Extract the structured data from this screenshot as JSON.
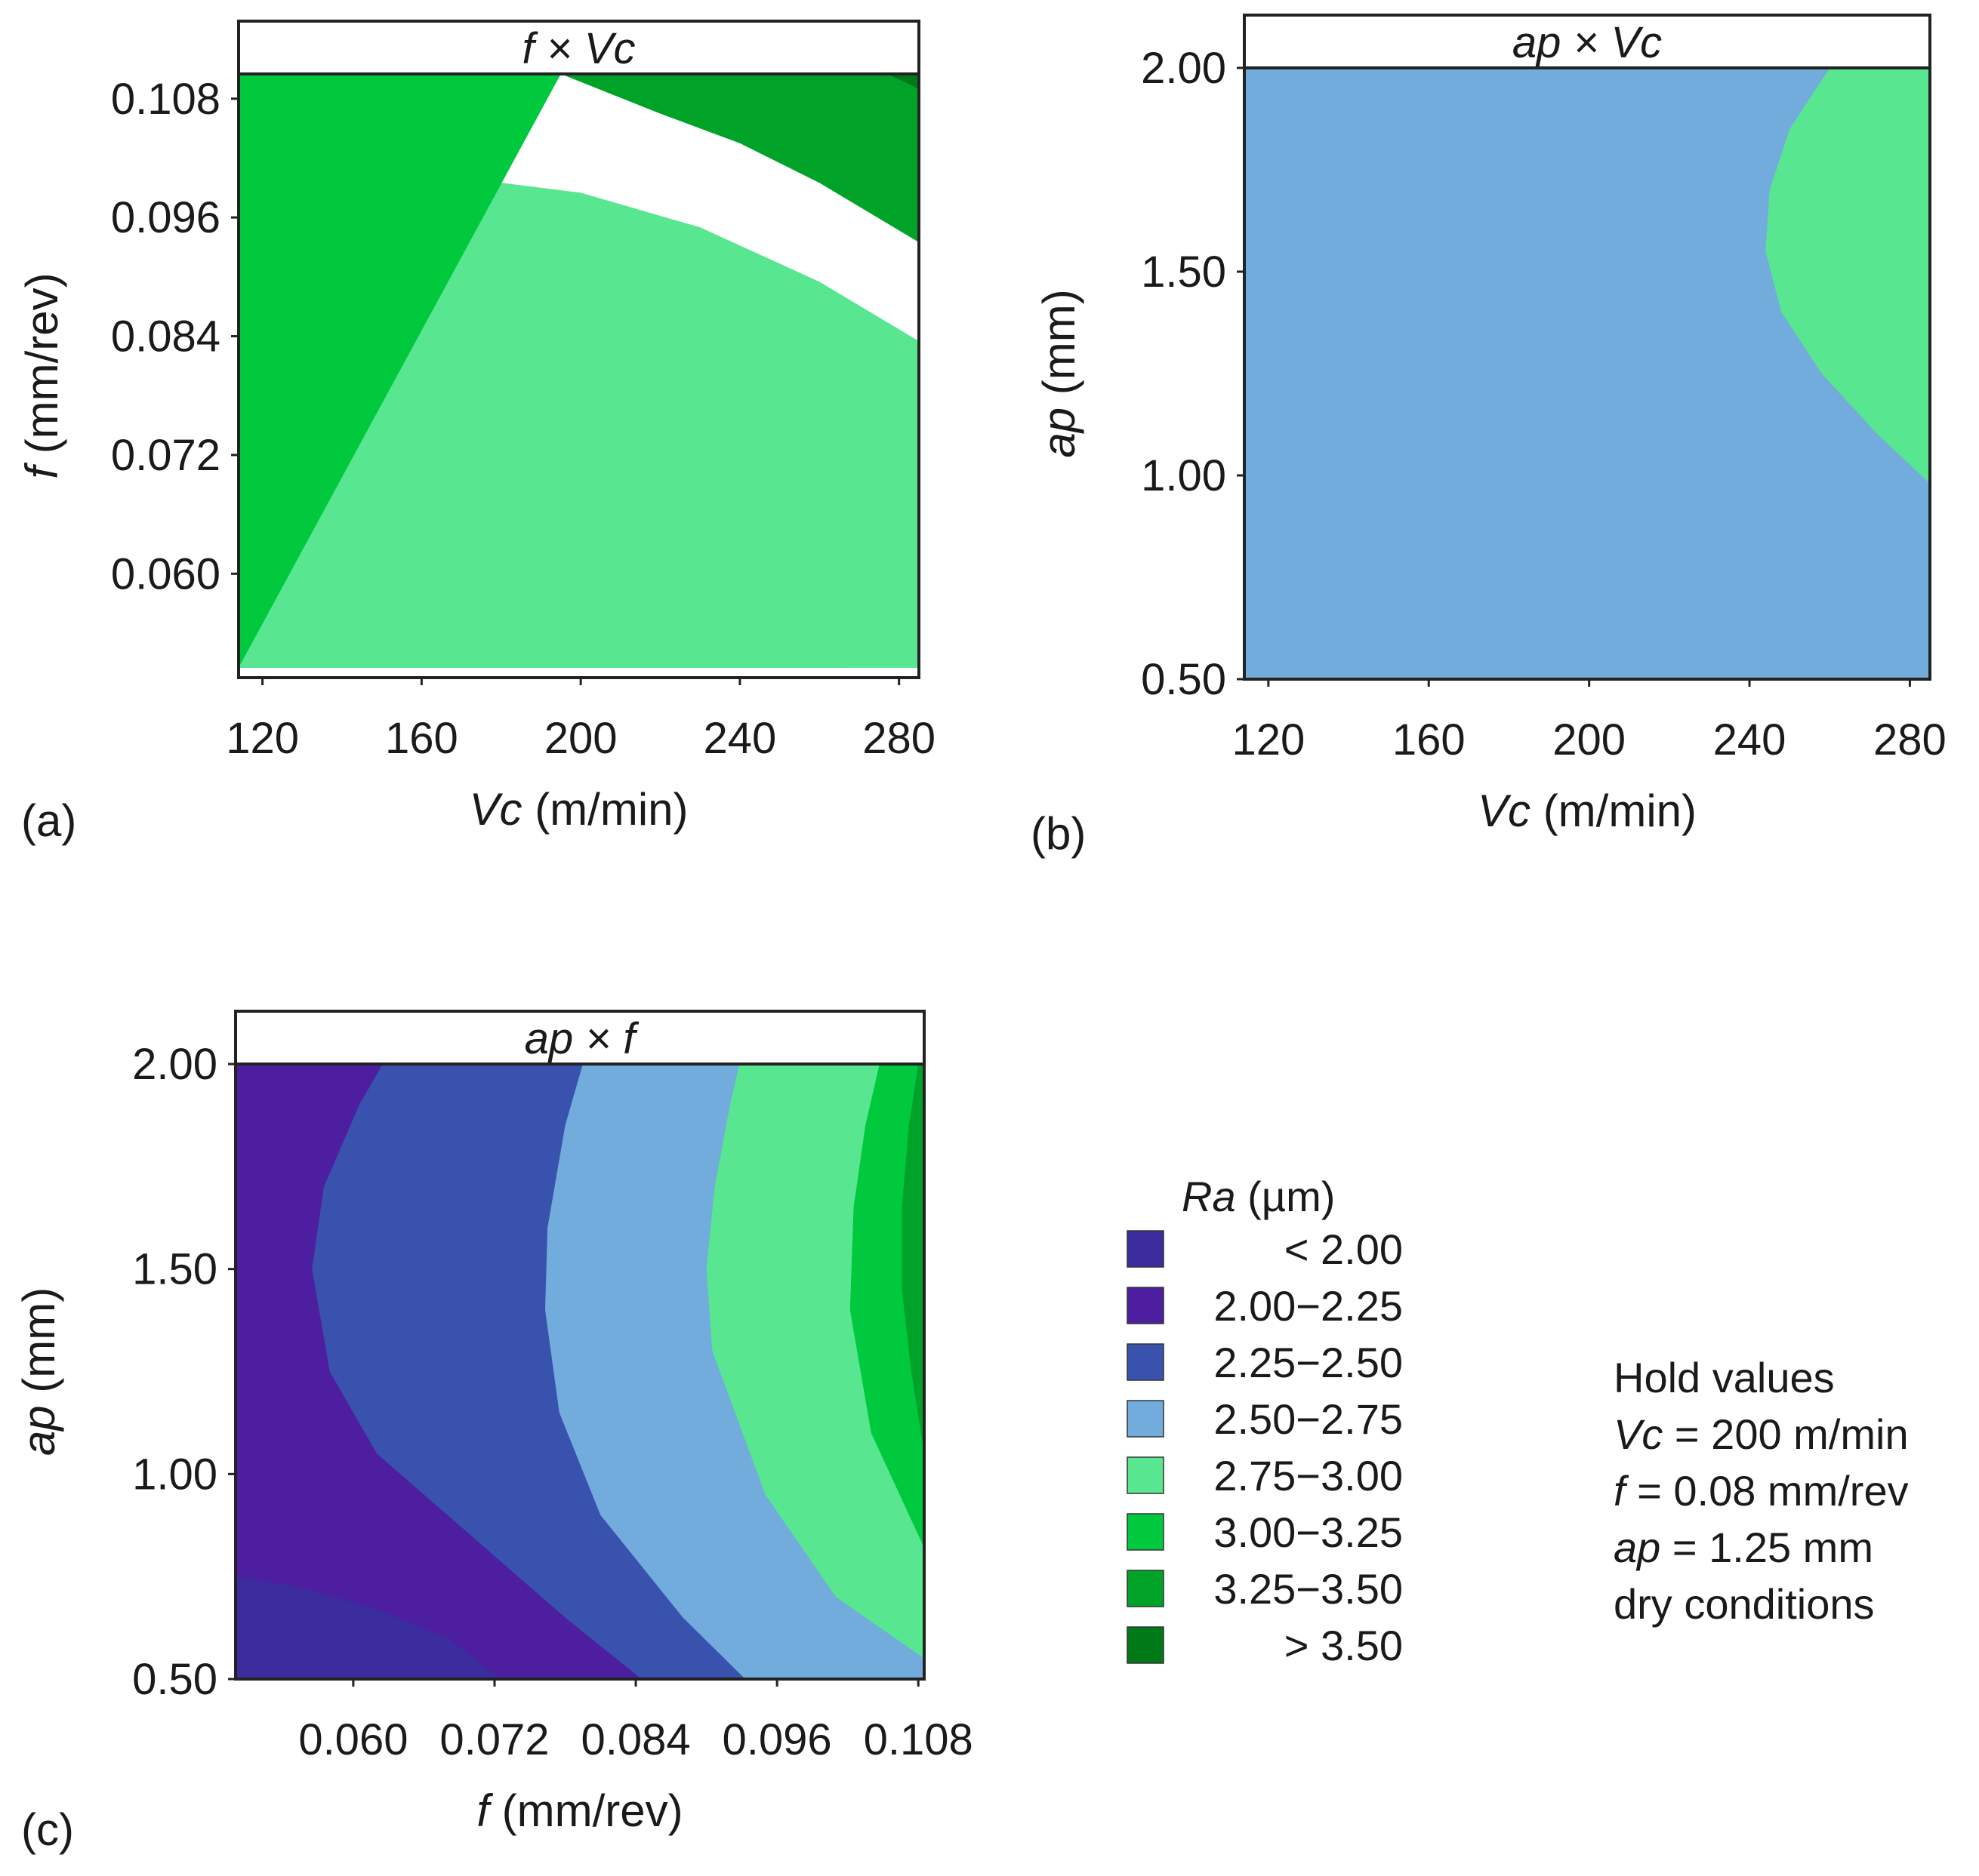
{
  "colors": {
    "lt_2_00": "#3b2d9e",
    "c_2_00_2_25": "#4d1fa0",
    "c_2_25_2_50": "#3952ae",
    "c_2_50_2_75": "#71acdc",
    "c_2_75_3_00": "#58e690",
    "c_3_00_3_25": "#00c93e",
    "c_3_25_3_50": "#00a328",
    "gt_3_50": "#007a18"
  },
  "chart_data": [
    {
      "type": "contour",
      "panel_label": "(a)",
      "title": {
        "var1": "f",
        "times": " × ",
        "var2": "Vc"
      },
      "xlabel": {
        "var": "Vc",
        "unit": " (m/min)"
      },
      "ylabel": {
        "var": "f",
        "unit": " (mm/rev)"
      },
      "xticks": [
        "120",
        "160",
        "200",
        "240",
        "280"
      ],
      "xtick_values": [
        120,
        160,
        200,
        240,
        280
      ],
      "yticks": [
        "0.108",
        "0.096",
        "0.084",
        "0.072",
        "0.060"
      ],
      "ytick_values": [
        0.108,
        0.096,
        0.084,
        0.072,
        0.06
      ],
      "xlim": [
        114,
        285
      ],
      "ylim": [
        0.0495,
        0.1105
      ],
      "z": "Ra (µm)",
      "regions": [
        {
          "class": "2.00−2.25",
          "boundary": [
            [
              114,
              0.0505
            ],
            [
              114,
              0.06
            ],
            [
              130,
              0.0615
            ],
            [
              145,
              0.062
            ],
            [
              160,
              0.0615
            ],
            [
              180,
              0.0595
            ],
            [
              200,
              0.0555
            ],
            [
              213,
              0.0505
            ]
          ]
        },
        {
          "class": "2.25−2.50",
          "boundary": [
            [
              114,
              0.0505
            ],
            [
              114,
              0.0775
            ],
            [
              130,
              0.0785
            ],
            [
              150,
              0.0785
            ],
            [
              170,
              0.0775
            ],
            [
              200,
              0.074
            ],
            [
              225,
              0.0685
            ],
            [
              250,
              0.0605
            ],
            [
              266,
              0.0505
            ]
          ]
        },
        {
          "class": "2.50−2.75",
          "boundary": [
            [
              114,
              0.0505
            ],
            [
              114,
              0.089
            ],
            [
              130,
              0.0895
            ],
            [
              150,
              0.0895
            ],
            [
              170,
              0.089
            ],
            [
              200,
              0.0865
            ],
            [
              230,
              0.0825
            ],
            [
              260,
              0.0765
            ],
            [
              285,
              0.0695
            ],
            [
              285,
              0.0505
            ]
          ]
        },
        {
          "class": "2.75−3.00",
          "boundary": [
            [
              114,
              0.0505
            ],
            [
              114,
              0.1
            ],
            [
              130,
              0.1005
            ],
            [
              150,
              0.1005
            ],
            [
              170,
              0.1
            ],
            [
              200,
              0.0985
            ],
            [
              230,
              0.095
            ],
            [
              260,
              0.0895
            ],
            [
              285,
              0.0835
            ],
            [
              285,
              0.0505
            ]
          ]
        },
        {
          "class": "3.00−3.25",
          "boundary": [
            [
              114,
              0.0505
            ],
            [
              114,
              0.1105
            ],
            [
              285,
              0.1105
            ],
            [
              285,
              0.0935
            ],
            [
              260,
              0.0995
            ],
            [
              240,
              0.1035
            ],
            [
              220,
              0.1065
            ],
            [
              195,
              0.1105
            ]
          ]
        },
        {
          "class": "3.25−3.50",
          "boundary": [
            [
              195,
              0.1105
            ],
            [
              220,
              0.1065
            ],
            [
              240,
              0.1035
            ],
            [
              260,
              0.0995
            ],
            [
              285,
              0.0935
            ],
            [
              285,
              0.1105
            ]
          ]
        },
        {
          "class": "> 3.50",
          "boundary": [
            [
              277,
              0.1105
            ],
            [
              285,
              0.109
            ],
            [
              285,
              0.1105
            ]
          ]
        }
      ]
    },
    {
      "type": "contour",
      "panel_label": "(b)",
      "title": {
        "var1": "ap",
        "times": " × ",
        "var2": "Vc"
      },
      "xlabel": {
        "var": "Vc",
        "unit": " (m/min)"
      },
      "ylabel": {
        "var": "ap",
        "unit": " (mm)"
      },
      "xticks": [
        "120",
        "160",
        "200",
        "240",
        "280"
      ],
      "xtick_values": [
        120,
        160,
        200,
        240,
        280
      ],
      "yticks": [
        "2.00",
        "1.50",
        "1.00",
        "0.50"
      ],
      "ytick_values": [
        2.0,
        1.5,
        1.0,
        0.5
      ],
      "xlim": [
        114,
        285
      ],
      "ylim": [
        0.5,
        2.0
      ],
      "z": "Ra (µm)",
      "regions": [
        {
          "class": "2.00−2.25",
          "boundary": [
            [
              114,
              0.5
            ],
            [
              114,
              0.75
            ],
            [
              130,
              0.765
            ],
            [
              150,
              0.77
            ],
            [
              170,
              0.765
            ],
            [
              200,
              0.74
            ],
            [
              230,
              0.68
            ],
            [
              250,
              0.61
            ],
            [
              275,
              0.5
            ]
          ]
        },
        {
          "class": "2.25−2.50",
          "boundary": [
            [
              114,
              0.5
            ],
            [
              114,
              1.15
            ],
            [
              135,
              1.2
            ],
            [
              150,
              1.205
            ],
            [
              170,
              1.19
            ],
            [
              200,
              1.13
            ],
            [
              230,
              1.03
            ],
            [
              260,
              0.88
            ],
            [
              285,
              0.595
            ],
            [
              285,
              0.5
            ]
          ]
        },
        {
          "class": "2.25−2.50",
          "boundary": [
            [
              120,
              2.0
            ],
            [
              130,
              1.96
            ],
            [
              145,
              1.945
            ],
            [
              160,
              1.965
            ],
            [
              172,
              2.0
            ]
          ]
        },
        {
          "class": "2.50−2.75",
          "boundary": [
            [
              114,
              0.5
            ],
            [
              114,
              2.0
            ],
            [
              285,
              2.0
            ],
            [
              285,
              0.5
            ]
          ]
        },
        {
          "class": "2.75−3.00",
          "boundary": [
            [
              260,
              2.0
            ],
            [
              250,
              1.85
            ],
            [
              245,
              1.7
            ],
            [
              244,
              1.55
            ],
            [
              248,
              1.4
            ],
            [
              258,
              1.25
            ],
            [
              272,
              1.1
            ],
            [
              285,
              0.98
            ],
            [
              285,
              2.0
            ]
          ]
        }
      ]
    },
    {
      "type": "contour",
      "panel_label": "(c)",
      "title": {
        "var1": "ap",
        "times": " × ",
        "var2": "f"
      },
      "xlabel": {
        "var": "f",
        "unit": " (mm/rev)"
      },
      "ylabel": {
        "var": "ap",
        "unit": " (mm)"
      },
      "xticks": [
        "0.060",
        "0.072",
        "0.084",
        "0.096",
        "0.108"
      ],
      "xtick_values": [
        0.06,
        0.072,
        0.084,
        0.096,
        0.108
      ],
      "yticks": [
        "2.00",
        "1.50",
        "1.00",
        "0.50"
      ],
      "ytick_values": [
        2.0,
        1.5,
        1.0,
        0.5
      ],
      "xlim": [
        0.05,
        0.1085
      ],
      "ylim": [
        0.5,
        2.0
      ],
      "z": "Ra (µm)",
      "regions": [
        {
          "class": "2.00−2.25",
          "boundary": [
            [
              0.05,
              0.5
            ],
            [
              0.05,
              2.0
            ],
            [
              0.1085,
              2.0
            ],
            [
              0.1085,
              0.5
            ]
          ]
        },
        {
          "class": "< 2.00",
          "boundary": [
            [
              0.05,
              0.5
            ],
            [
              0.05,
              0.75
            ],
            [
              0.056,
              0.72
            ],
            [
              0.062,
              0.67
            ],
            [
              0.068,
              0.6
            ],
            [
              0.0725,
              0.5
            ]
          ]
        },
        {
          "class": "2.25−2.50",
          "boundary": [
            [
              0.0845,
              0.5
            ],
            [
              0.078,
              0.65
            ],
            [
              0.07,
              0.85
            ],
            [
              0.062,
              1.05
            ],
            [
              0.058,
              1.25
            ],
            [
              0.0565,
              1.5
            ],
            [
              0.0575,
              1.7
            ],
            [
              0.0605,
              1.9
            ],
            [
              0.0625,
              2.0
            ],
            [
              0.1085,
              2.0
            ],
            [
              0.1085,
              0.5
            ]
          ]
        },
        {
          "class": "2.50−2.75",
          "boundary": [
            [
              0.0933,
              0.5
            ],
            [
              0.088,
              0.65
            ],
            [
              0.081,
              0.9
            ],
            [
              0.0775,
              1.15
            ],
            [
              0.0763,
              1.4
            ],
            [
              0.0765,
              1.6
            ],
            [
              0.078,
              1.85
            ],
            [
              0.0795,
              2.0
            ],
            [
              0.1085,
              2.0
            ],
            [
              0.1085,
              0.5
            ]
          ]
        },
        {
          "class": "2.75−3.00",
          "boundary": [
            [
              0.1085,
              0.55
            ],
            [
              0.101,
              0.7
            ],
            [
              0.095,
              0.95
            ],
            [
              0.0905,
              1.3
            ],
            [
              0.09,
              1.5
            ],
            [
              0.0907,
              1.7
            ],
            [
              0.092,
              1.9
            ],
            [
              0.0928,
              2.0
            ],
            [
              0.1085,
              2.0
            ]
          ]
        },
        {
          "class": "3.00−3.25",
          "boundary": [
            [
              0.1085,
              0.82
            ],
            [
              0.104,
              1.1
            ],
            [
              0.1022,
              1.4
            ],
            [
              0.1025,
              1.65
            ],
            [
              0.1035,
              1.85
            ],
            [
              0.1047,
              2.0
            ],
            [
              0.1085,
              2.0
            ]
          ]
        },
        {
          "class": "3.25−3.50",
          "boundary": [
            [
              0.1085,
              1.05
            ],
            [
              0.1074,
              1.25
            ],
            [
              0.1066,
              1.45
            ],
            [
              0.1066,
              1.65
            ],
            [
              0.1072,
              1.85
            ],
            [
              0.108,
              2.0
            ],
            [
              0.1085,
              2.0
            ]
          ]
        }
      ]
    }
  ],
  "legend": {
    "title_var": "Ra",
    "title_unit": " (µm)",
    "items": [
      {
        "label": "< 2.00",
        "class": "< 2.00",
        "color": "#3b2d9e"
      },
      {
        "label": "2.00−2.25",
        "class": "2.00−2.25",
        "color": "#4d1fa0"
      },
      {
        "label": "2.25−2.50",
        "class": "2.25−2.50",
        "color": "#3952ae"
      },
      {
        "label": "2.50−2.75",
        "class": "2.50−2.75",
        "color": "#71acdc"
      },
      {
        "label": "2.75−3.00",
        "class": "2.75−3.00",
        "color": "#58e690"
      },
      {
        "label": "3.00−3.25",
        "class": "3.00−3.25",
        "color": "#00c93e"
      },
      {
        "label": "3.25−3.50",
        "class": "3.25−3.50",
        "color": "#00a328"
      },
      {
        "label": "> 3.50",
        "class": "> 3.50",
        "color": "#007a18"
      }
    ]
  },
  "hold": {
    "title": "Hold values",
    "lines": [
      {
        "var": "Vc",
        "text": " = 200 m/min"
      },
      {
        "var": "f",
        "text": " = 0.08 mm/rev"
      },
      {
        "var": "ap",
        "text": " = 1.25 mm"
      },
      {
        "var": "",
        "text": "dry conditions"
      }
    ]
  }
}
